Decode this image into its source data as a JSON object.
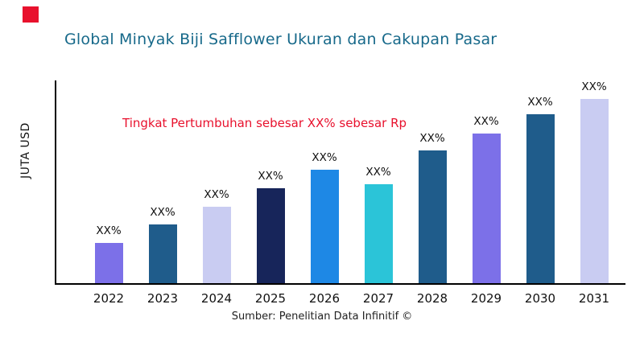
{
  "page": {
    "title": "Global Minyak Biji Safflower Ukuran dan Cakupan Pasar",
    "title_color": "#17698A",
    "logo_color": "#E8112D",
    "ylabel": "JUTA USD",
    "annotation": "Tingkat Pertumbuhan sebesar XX% sebesar Rp",
    "annotation_color": "#E8112D",
    "source": "Sumber: Penelitian Data Infinitif ©"
  },
  "chart_data": {
    "type": "bar",
    "title": "Global Minyak Biji Safflower Ukuran dan Cakupan Pasar",
    "xlabel": "",
    "ylabel": "JUTA USD",
    "categories": [
      "2022",
      "2023",
      "2024",
      "2025",
      "2026",
      "2027",
      "2028",
      "2029",
      "2030",
      "2031"
    ],
    "values": [
      50,
      72,
      94,
      117,
      140,
      122,
      164,
      185,
      208,
      231
    ],
    "data_labels": [
      "XX%",
      "XX%",
      "XX%",
      "XX%",
      "XX%",
      "XX%",
      "XX%",
      "XX%",
      "XX%",
      "XX%"
    ],
    "bar_colors": [
      "#7C70E8",
      "#1F5C8B",
      "#C9CCF2",
      "#17255A",
      "#1E88E5",
      "#2BC4D8",
      "#1F5C8B",
      "#7C70E8",
      "#1F5C8B",
      "#C9CCF2"
    ],
    "ylim": [
      0,
      250
    ],
    "grid": false,
    "legend": false,
    "annotation": "Tingkat Pertumbuhan sebesar XX% sebesar Rp"
  }
}
